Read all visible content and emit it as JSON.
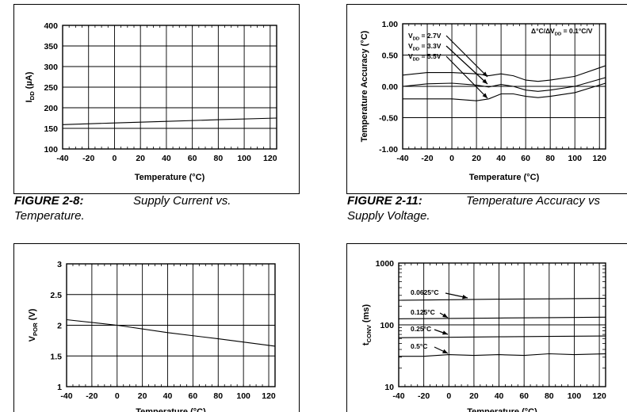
{
  "captions": [
    {
      "figure": "FIGURE 2-8:",
      "text": "Supply Current vs.",
      "text2": "Temperature."
    },
    {
      "figure": "FIGURE 2-11:",
      "text": "Temperature Accuracy vs",
      "text2": "Supply Voltage."
    }
  ],
  "chart_data": [
    {
      "type": "line",
      "xlabel": "Temperature (°C)",
      "ylabel": "IDD (µA)",
      "ylabel_main": "I",
      "ylabel_sub": "DD",
      "ylabel_rest": " (µA)",
      "xlim": [
        -40,
        125
      ],
      "ylim": [
        100,
        400
      ],
      "xticks": [
        -40,
        -20,
        0,
        20,
        40,
        60,
        80,
        100,
        120
      ],
      "yticks": [
        100,
        150,
        200,
        250,
        300,
        350,
        400
      ],
      "ytick_labels": [
        "100",
        "150",
        "200",
        "250",
        "300",
        "350",
        "400"
      ],
      "series": [
        {
          "x": [
            -40,
            0,
            40,
            80,
            125
          ],
          "y": [
            159,
            163,
            167,
            171,
            175
          ]
        }
      ]
    },
    {
      "type": "line",
      "xlabel": "Temperature (°C)",
      "ylabel": "Temperature Accuracy (°C)",
      "xlim": [
        -40,
        125
      ],
      "ylim": [
        -1.0,
        1.0
      ],
      "xticks": [
        -40,
        -20,
        0,
        20,
        40,
        60,
        80,
        100,
        120
      ],
      "yticks": [
        -1.0,
        -0.5,
        0.0,
        0.5,
        1.0
      ],
      "ytick_labels": [
        "-1.00",
        "-0.50",
        "0.00",
        "0.50",
        "1.00"
      ],
      "annotation": "Δ°C/ΔVDD = 0.1°C/V",
      "annotation_main": "Δ°C/ΔV",
      "annotation_sub": "DD",
      "annotation_rest": " = 0.1°C/V",
      "series": [
        {
          "name": "VDD = 2.7V",
          "label_main": "V",
          "label_sub": "DD",
          "label_rest": " = 2.7V",
          "x": [
            -40,
            -20,
            0,
            20,
            30,
            40,
            50,
            60,
            70,
            80,
            100,
            125
          ],
          "y": [
            0.18,
            0.22,
            0.22,
            0.2,
            0.17,
            0.2,
            0.17,
            0.1,
            0.08,
            0.1,
            0.16,
            0.33
          ]
        },
        {
          "name": "VDD = 3.3V",
          "label_main": "V",
          "label_sub": "DD",
          "label_rest": " = 3.3V",
          "x": [
            -40,
            -20,
            0,
            20,
            30,
            40,
            50,
            60,
            70,
            80,
            100,
            125
          ],
          "y": [
            0.0,
            0.04,
            0.05,
            0.02,
            -0.01,
            0.03,
            0.0,
            -0.06,
            -0.08,
            -0.06,
            0.0,
            0.14
          ]
        },
        {
          "name": "VDD = 5.5V",
          "label_main": "V",
          "label_sub": "DD",
          "label_rest": " = 5.5V",
          "x": [
            -40,
            -20,
            0,
            20,
            30,
            40,
            50,
            60,
            70,
            80,
            100,
            125
          ],
          "y": [
            -0.2,
            -0.2,
            -0.2,
            -0.23,
            -0.2,
            -0.12,
            -0.12,
            -0.16,
            -0.18,
            -0.16,
            -0.1,
            0.05
          ]
        }
      ]
    },
    {
      "type": "line",
      "xlabel": "Temperature (°C)",
      "ylabel": "VPOR (V)",
      "ylabel_main": "V",
      "ylabel_sub": "POR",
      "ylabel_rest": " (V)",
      "xlim": [
        -40,
        125
      ],
      "ylim": [
        1,
        3
      ],
      "xticks": [
        -40,
        -20,
        0,
        20,
        40,
        60,
        80,
        100,
        120
      ],
      "yticks": [
        1,
        1.5,
        2,
        2.5,
        3
      ],
      "ytick_labels": [
        "1",
        "1.5",
        "2",
        "2.5",
        "3"
      ],
      "series": [
        {
          "x": [
            -40,
            0,
            40,
            80,
            125
          ],
          "y": [
            2.09,
            2.0,
            1.88,
            1.78,
            1.66
          ]
        }
      ]
    },
    {
      "type": "line",
      "xlabel": "Temperature (°C)",
      "ylabel": "tCONV (ms)",
      "ylabel_main": "t",
      "ylabel_sub": "CONV",
      "ylabel_rest": " (ms)",
      "ylog": true,
      "xlim": [
        -40,
        125
      ],
      "ylim": [
        10,
        1000
      ],
      "xticks": [
        -40,
        -20,
        0,
        20,
        40,
        60,
        80,
        100,
        120
      ],
      "yticks": [
        10,
        100,
        1000
      ],
      "ytick_labels": [
        "10",
        "100",
        "1000"
      ],
      "series": [
        {
          "name": "0.0625°C",
          "x": [
            -40,
            0,
            40,
            80,
            125
          ],
          "y": [
            250,
            255,
            260,
            263,
            268
          ]
        },
        {
          "name": "0.125°C",
          "x": [
            -40,
            0,
            40,
            80,
            125
          ],
          "y": [
            125,
            127,
            129,
            131,
            133
          ]
        },
        {
          "name": "0.25°C",
          "x": [
            -40,
            0,
            40,
            80,
            125
          ],
          "y": [
            62,
            63,
            64,
            65,
            66
          ]
        },
        {
          "name": "0.5°C",
          "x": [
            -40,
            -20,
            0,
            20,
            40,
            60,
            80,
            100,
            125
          ],
          "y": [
            31,
            31,
            33,
            32,
            33,
            32,
            34,
            33,
            34
          ]
        }
      ]
    }
  ]
}
